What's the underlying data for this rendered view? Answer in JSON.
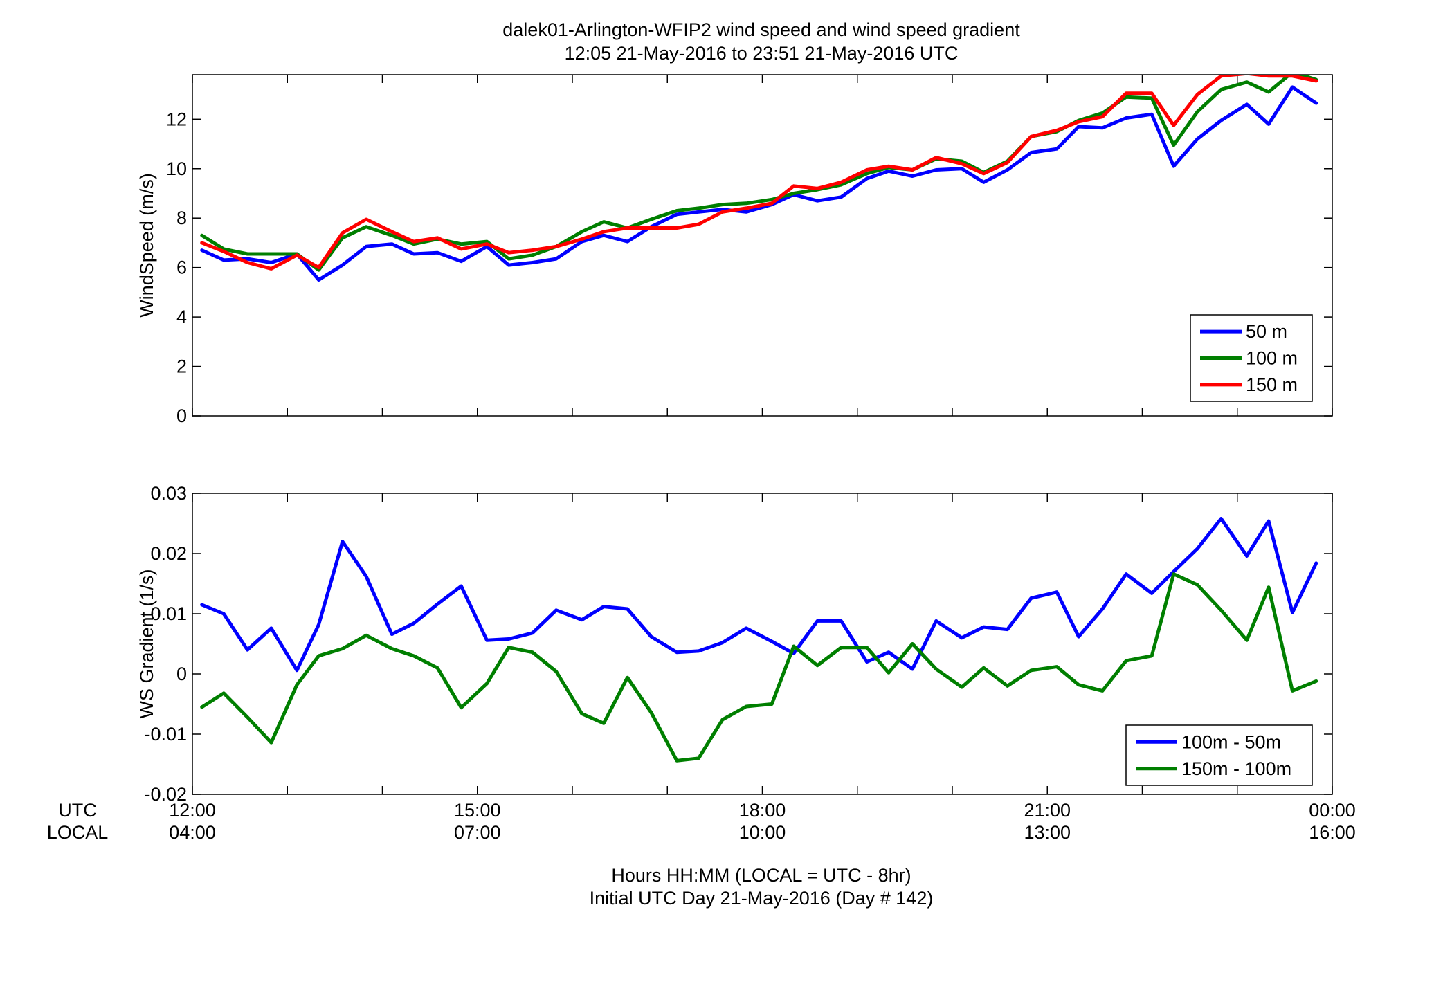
{
  "figure": {
    "title_line1": "dalek01-Arlington-WFIP2  wind speed and wind speed gradient",
    "title_line2": "12:05 21-May-2016 to 23:51 21-May-2016  UTC",
    "xlabel_line1": "Hours HH:MM  (LOCAL = UTC - 8hr)",
    "xlabel_line2": "Initial UTC Day 21-May-2016 (Day # 142)",
    "utc_row_label": "UTC",
    "local_row_label": "LOCAL"
  },
  "colors": {
    "series_blue": "#0000ff",
    "series_green": "#007f00",
    "series_red": "#ff0000"
  },
  "chart_data": [
    {
      "type": "line",
      "ylabel": "WindSpeed (m/s)",
      "xlim": [
        12.0,
        24.0
      ],
      "ylim": [
        0,
        13.8
      ],
      "yticks": [
        0,
        2,
        4,
        6,
        8,
        10,
        12
      ],
      "ytick_labels": [
        "0",
        "2",
        "4",
        "6",
        "8",
        "10",
        "12"
      ],
      "xticks_utc_labels": [
        "12:00",
        "15:00",
        "18:00",
        "21:00",
        "00:00"
      ],
      "xticks_local_labels": [
        "04:00",
        "07:00",
        "10:00",
        "13:00",
        "16:00"
      ],
      "legend_position": "bottom-right",
      "grid": false,
      "x": [
        12.1,
        12.33,
        12.58,
        12.83,
        13.1,
        13.33,
        13.58,
        13.83,
        14.1,
        14.33,
        14.58,
        14.83,
        15.1,
        15.33,
        15.58,
        15.83,
        16.1,
        16.33,
        16.58,
        16.83,
        17.1,
        17.33,
        17.58,
        17.83,
        18.1,
        18.33,
        18.58,
        18.83,
        19.1,
        19.33,
        19.58,
        19.83,
        20.1,
        20.33,
        20.58,
        20.83,
        21.1,
        21.33,
        21.58,
        21.83,
        22.1,
        22.33,
        22.58,
        22.83,
        23.1,
        23.33,
        23.58,
        23.83
      ],
      "series": [
        {
          "name": "50 m",
          "color_key": "series_blue",
          "values": [
            6.7,
            6.3,
            6.35,
            6.2,
            6.55,
            5.5,
            6.1,
            6.85,
            6.95,
            6.55,
            6.6,
            6.25,
            6.85,
            6.1,
            6.2,
            6.35,
            7.05,
            7.3,
            7.05,
            7.65,
            8.15,
            8.25,
            8.35,
            8.25,
            8.55,
            8.95,
            8.7,
            8.85,
            9.6,
            9.9,
            9.7,
            9.95,
            10.0,
            9.45,
            9.95,
            10.65,
            10.8,
            11.7,
            11.65,
            12.05,
            12.2,
            10.1,
            11.2,
            11.95,
            12.6,
            11.8,
            13.3,
            12.65
          ]
        },
        {
          "name": "100 m",
          "color_key": "series_green",
          "values": [
            7.3,
            6.75,
            6.55,
            6.55,
            6.55,
            5.9,
            7.2,
            7.65,
            7.3,
            6.95,
            7.15,
            6.95,
            7.05,
            6.35,
            6.5,
            6.85,
            7.45,
            7.85,
            7.6,
            7.95,
            8.3,
            8.4,
            8.55,
            8.6,
            8.75,
            9.0,
            9.15,
            9.35,
            9.8,
            10.05,
            9.95,
            10.4,
            10.3,
            9.85,
            10.3,
            11.3,
            11.5,
            11.95,
            12.25,
            12.9,
            12.85,
            10.95,
            12.3,
            13.2,
            13.5,
            13.1,
            13.9,
            13.6
          ]
        },
        {
          "name": "150 m",
          "color_key": "series_red",
          "values": [
            7.0,
            6.65,
            6.2,
            5.95,
            6.5,
            6.0,
            7.4,
            7.95,
            7.45,
            7.05,
            7.2,
            6.75,
            6.95,
            6.6,
            6.7,
            6.85,
            7.15,
            7.45,
            7.6,
            7.6,
            7.6,
            7.75,
            8.25,
            8.4,
            8.6,
            9.3,
            9.2,
            9.45,
            9.95,
            10.1,
            9.95,
            10.45,
            10.2,
            9.8,
            10.25,
            11.3,
            11.55,
            11.9,
            12.1,
            13.05,
            13.05,
            11.75,
            13.0,
            13.75,
            13.85,
            13.75,
            13.75,
            13.55
          ]
        }
      ]
    },
    {
      "type": "line",
      "ylabel": "WS Gradient (1/s)",
      "xlim": [
        12.0,
        24.0
      ],
      "ylim": [
        -0.02,
        0.03
      ],
      "yticks": [
        -0.02,
        -0.01,
        0,
        0.01,
        0.02,
        0.03
      ],
      "ytick_labels": [
        "-0.02",
        "-0.01",
        "0",
        "0.01",
        "0.02",
        "0.03"
      ],
      "xticks_utc_labels": [
        "12:00",
        "15:00",
        "18:00",
        "21:00",
        "00:00"
      ],
      "xticks_local_labels": [
        "04:00",
        "07:00",
        "10:00",
        "13:00",
        "16:00"
      ],
      "legend_position": "bottom-right",
      "grid": false,
      "x": [
        12.1,
        12.33,
        12.58,
        12.83,
        13.1,
        13.33,
        13.58,
        13.83,
        14.1,
        14.33,
        14.58,
        14.83,
        15.1,
        15.33,
        15.58,
        15.83,
        16.1,
        16.33,
        16.58,
        16.83,
        17.1,
        17.33,
        17.58,
        17.83,
        18.1,
        18.33,
        18.58,
        18.83,
        19.1,
        19.33,
        19.58,
        19.83,
        20.1,
        20.33,
        20.58,
        20.83,
        21.1,
        21.33,
        21.58,
        21.83,
        22.1,
        22.33,
        22.58,
        22.83,
        23.1,
        23.33,
        23.58,
        23.83
      ],
      "series": [
        {
          "name": "100m - 50m",
          "color_key": "series_blue",
          "values": [
            0.0115,
            0.01,
            0.004,
            0.0076,
            0.0006,
            0.0082,
            0.022,
            0.0162,
            0.0066,
            0.0084,
            0.0116,
            0.0146,
            0.0056,
            0.0058,
            0.0068,
            0.0106,
            0.009,
            0.0112,
            0.0108,
            0.0062,
            0.0036,
            0.0038,
            0.0052,
            0.0076,
            0.0054,
            0.0034,
            0.0088,
            0.0088,
            0.002,
            0.0036,
            0.0008,
            0.0088,
            0.006,
            0.0078,
            0.0074,
            0.0126,
            0.0136,
            0.0062,
            0.0108,
            0.0166,
            0.0134,
            0.017,
            0.0208,
            0.0258,
            0.0196,
            0.0254,
            0.0102,
            0.0184
          ]
        },
        {
          "name": "150m - 100m",
          "color_key": "series_green",
          "values": [
            -0.0055,
            -0.0032,
            -0.0072,
            -0.0114,
            -0.0018,
            0.003,
            0.0042,
            0.0064,
            0.0042,
            0.003,
            0.001,
            -0.0056,
            -0.0016,
            0.0044,
            0.0036,
            0.0004,
            -0.0066,
            -0.0082,
            -0.0006,
            -0.0064,
            -0.0144,
            -0.014,
            -0.0076,
            -0.0054,
            -0.005,
            0.0046,
            0.0014,
            0.0044,
            0.0044,
            0.0002,
            0.005,
            0.0008,
            -0.0022,
            0.001,
            -0.002,
            0.0006,
            0.0012,
            -0.0018,
            -0.0028,
            0.0022,
            0.003,
            0.0166,
            0.0148,
            0.0106,
            0.0056,
            0.0144,
            -0.0028,
            -0.0012
          ]
        }
      ]
    }
  ]
}
